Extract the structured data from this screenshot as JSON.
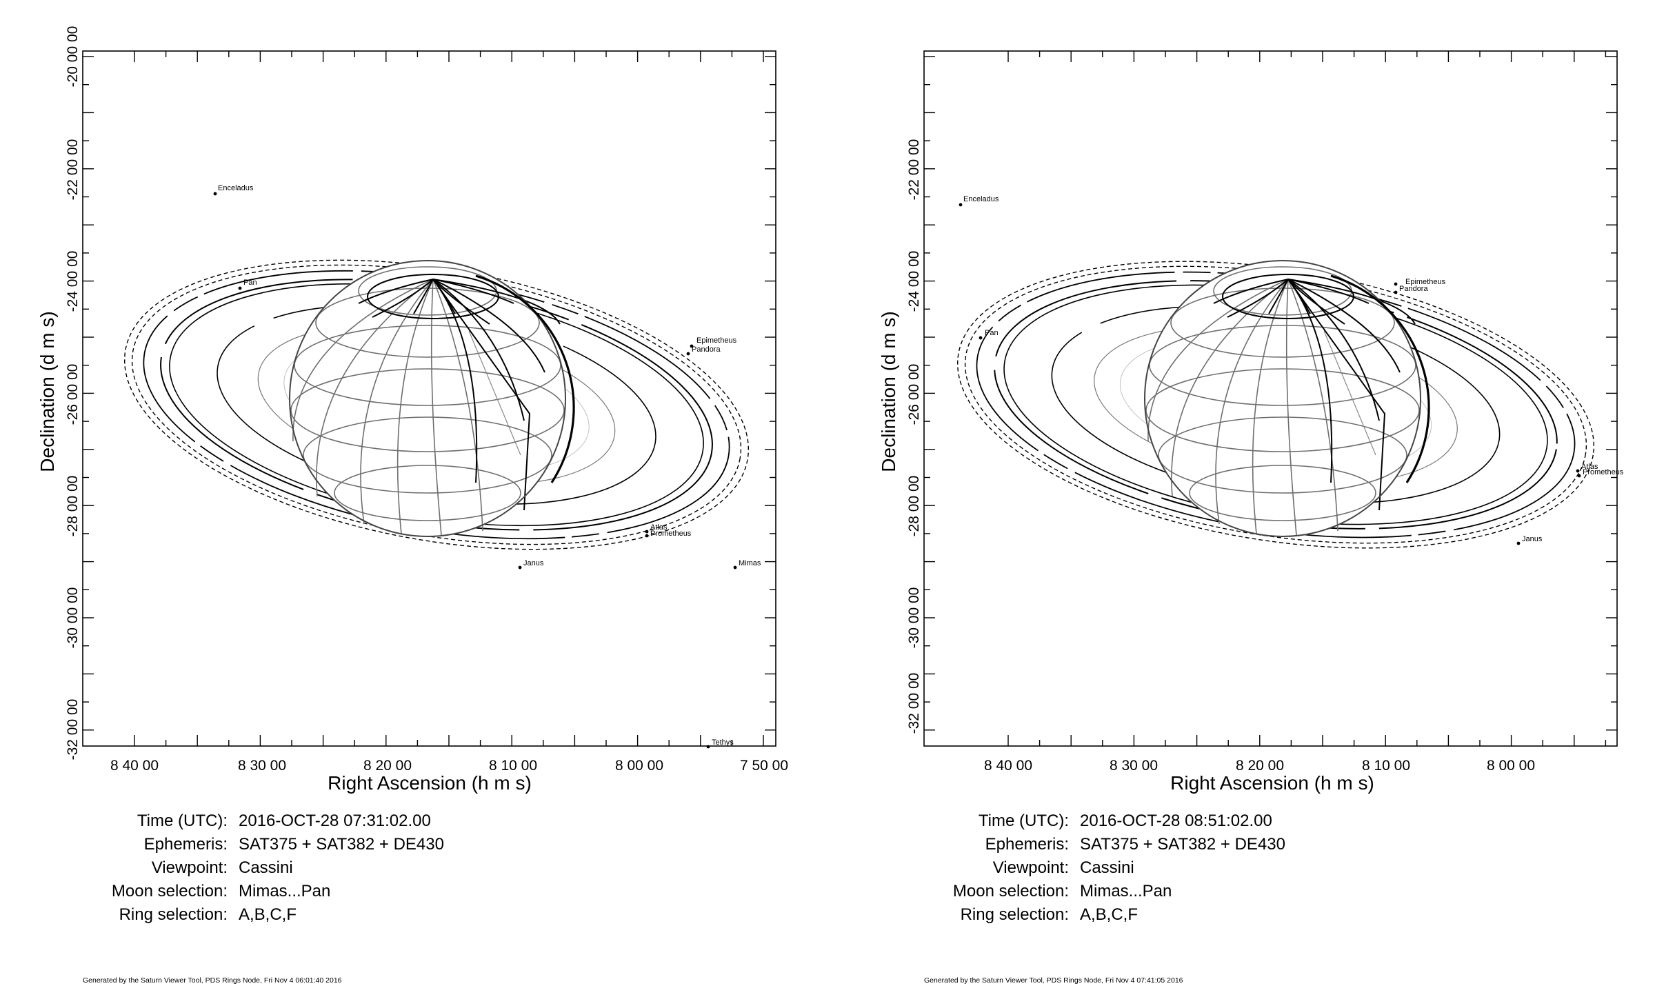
{
  "panels": [
    {
      "xlabel": "Right Ascension (h m s)",
      "ylabel": "Declination (d m s)",
      "x_ticks": [
        "8 40 00",
        "8 30 00",
        "8 20 00",
        "8 10 00",
        "8 00 00",
        "7 50 00"
      ],
      "y_ticks": [
        "-20 00 00",
        "-22 00 00",
        "-24 00 00",
        "-26 00 00",
        "-28 00 00",
        "-30 00 00",
        "-32 00 00"
      ],
      "moons": [
        "Enceladus",
        "Pan",
        "Epimetheus",
        "Pandora",
        "Atlas",
        "Prometheus",
        "Janus",
        "Mimas",
        "Tethys"
      ],
      "info": {
        "time_label": "Time (UTC):",
        "time_value": "2016-OCT-28 07:31:02.00",
        "ephemeris_label": "Ephemeris:",
        "ephemeris_value": "SAT375 + SAT382 + DE430",
        "viewpoint_label": "Viewpoint:",
        "viewpoint_value": "Cassini",
        "moon_sel_label": "Moon selection:",
        "moon_sel_value": "Mimas...Pan",
        "ring_sel_label": "Ring selection:",
        "ring_sel_value": "A,B,C,F"
      },
      "credit": "Generated by the Saturn Viewer Tool, PDS Rings Node, Fri Nov  4 06:01:40 2016"
    },
    {
      "xlabel": "Right Ascension (h m s)",
      "ylabel": "Declination (d m s)",
      "x_ticks": [
        "8 40 00",
        "8 30 00",
        "8 20 00",
        "8 10 00",
        "8 00 00"
      ],
      "y_ticks": [
        "-22 00 00",
        "-24 00 00",
        "-26 00 00",
        "-28 00 00",
        "-30 00 00",
        "-32 00 00"
      ],
      "moons": [
        "Enceladus",
        "Pan",
        "Epimetheus",
        "Pandora",
        "Atlas",
        "Prometheus",
        "Janus"
      ],
      "info": {
        "time_label": "Time (UTC):",
        "time_value": "2016-OCT-28 08:51:02.00",
        "ephemeris_label": "Ephemeris:",
        "ephemeris_value": "SAT375 + SAT382 + DE430",
        "viewpoint_label": "Viewpoint:",
        "viewpoint_value": "Cassini",
        "moon_sel_label": "Moon selection:",
        "moon_sel_value": "Mimas...Pan",
        "ring_sel_label": "Ring selection:",
        "ring_sel_value": "A,B,C,F"
      },
      "credit": "Generated by the Saturn Viewer Tool, PDS Rings Node, Fri Nov  4 07:41:05 2016"
    }
  ]
}
